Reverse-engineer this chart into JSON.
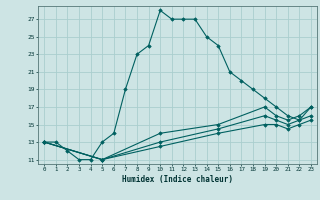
{
  "xlabel": "Humidex (Indice chaleur)",
  "ylabel": "",
  "bg_color": "#cde4e4",
  "line_color": "#006060",
  "grid_color": "#aacece",
  "xlim": [
    -0.5,
    23.5
  ],
  "ylim": [
    10.5,
    28.5
  ],
  "xticks": [
    0,
    1,
    2,
    3,
    4,
    5,
    6,
    7,
    8,
    9,
    10,
    11,
    12,
    13,
    14,
    15,
    16,
    17,
    18,
    19,
    20,
    21,
    22,
    23
  ],
  "yticks": [
    11,
    13,
    15,
    17,
    19,
    21,
    23,
    25,
    27
  ],
  "lines": [
    {
      "x": [
        0,
        1,
        2,
        3,
        4,
        5,
        6,
        7,
        8,
        9,
        10,
        11,
        12,
        13,
        14,
        15,
        16,
        17,
        18,
        19,
        20,
        21,
        22,
        23
      ],
      "y": [
        13,
        13,
        12,
        11,
        11,
        13,
        14,
        19,
        23,
        24,
        28,
        27,
        27,
        27,
        25,
        24,
        21,
        20,
        19,
        18,
        17,
        16,
        15.5,
        17
      ]
    },
    {
      "x": [
        0,
        5,
        10,
        15,
        19,
        20,
        21,
        22,
        23
      ],
      "y": [
        13,
        11,
        14,
        15,
        17,
        16,
        15.5,
        16,
        17
      ]
    },
    {
      "x": [
        0,
        5,
        10,
        15,
        19,
        20,
        21,
        22,
        23
      ],
      "y": [
        13,
        11,
        13,
        14.5,
        16,
        15.5,
        15,
        15.5,
        16
      ]
    },
    {
      "x": [
        0,
        5,
        10,
        15,
        19,
        20,
        21,
        22,
        23
      ],
      "y": [
        13,
        11,
        12.5,
        14,
        15,
        15,
        14.5,
        15,
        15.5
      ]
    }
  ]
}
